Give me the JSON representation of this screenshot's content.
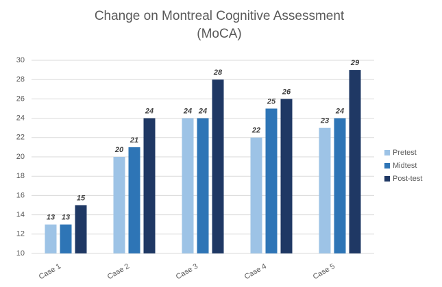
{
  "chart_data": {
    "type": "bar",
    "title": [
      "Change on Montreal Cognitive Assessment",
      "(MoCA)"
    ],
    "categories": [
      "Case 1",
      "Case 2",
      "Case 3",
      "Case 4",
      "Case 5"
    ],
    "series": [
      {
        "name": "Pretest",
        "color": "#9dc3e6",
        "values": [
          13,
          20,
          24,
          22,
          23
        ]
      },
      {
        "name": "Midtest",
        "color": "#2e75b6",
        "values": [
          13,
          21,
          24,
          25,
          24
        ]
      },
      {
        "name": "Post-test",
        "color": "#1f3864",
        "values": [
          15,
          24,
          28,
          26,
          29
        ]
      }
    ],
    "ylim": [
      10,
      30
    ],
    "yticks": [
      10,
      12,
      14,
      16,
      18,
      20,
      22,
      24,
      26,
      28,
      30
    ],
    "grid": true,
    "legend": "right"
  }
}
